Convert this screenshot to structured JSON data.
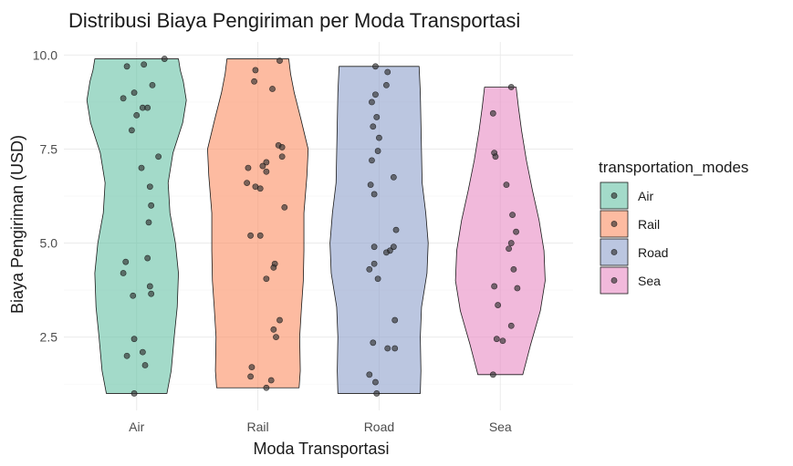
{
  "chart_data": {
    "type": "violin",
    "title": "Distribusi Biaya Pengiriman per Moda Transportasi",
    "xlabel": "Moda Transportasi",
    "ylabel": "Biaya Pengiriman (USD)",
    "categories": [
      "Air",
      "Rail",
      "Road",
      "Sea"
    ],
    "ylim": [
      0.55,
      10.35
    ],
    "yticks": [
      2.5,
      5.0,
      7.5,
      10.0
    ],
    "ytick_labels": [
      "2.5",
      "5.0",
      "7.5",
      "10.0"
    ],
    "grid": true,
    "legend": {
      "title": "transportation_modes",
      "position": "right",
      "items": [
        "Air",
        "Rail",
        "Road",
        "Sea"
      ]
    },
    "colors": {
      "Air": "#66c2a5",
      "Rail": "#fc8d62",
      "Road": "#8da0cb",
      "Sea": "#e78ac3"
    },
    "point_color": "#333333",
    "series": [
      {
        "name": "Air",
        "violin_width": [
          [
            1.0,
            0.5
          ],
          [
            1.6,
            0.57
          ],
          [
            2.5,
            0.62
          ],
          [
            3.3,
            0.67
          ],
          [
            4.2,
            0.69
          ],
          [
            5.0,
            0.64
          ],
          [
            5.8,
            0.55
          ],
          [
            6.6,
            0.52
          ],
          [
            7.4,
            0.6
          ],
          [
            8.2,
            0.76
          ],
          [
            8.8,
            0.82
          ],
          [
            9.3,
            0.77
          ],
          [
            9.6,
            0.72
          ],
          [
            9.9,
            0.69
          ]
        ],
        "points": [
          9.7,
          9.75,
          9.9,
          9.2,
          9.0,
          8.85,
          8.6,
          8.6,
          8.4,
          8.0,
          7.3,
          7.0,
          6.5,
          6.0,
          5.55,
          4.6,
          4.5,
          4.2,
          3.85,
          3.65,
          3.6,
          2.45,
          2.1,
          2.0,
          1.75,
          1.0
        ],
        "jitter": [
          0.92,
          1.06,
          1.23,
          1.13,
          0.98,
          0.89,
          1.05,
          1.09,
          1.0,
          0.96,
          1.18,
          1.04,
          1.11,
          1.12,
          1.1,
          1.09,
          0.91,
          0.89,
          1.11,
          1.12,
          0.97,
          0.98,
          1.05,
          0.92,
          1.07,
          0.98
        ]
      },
      {
        "name": "Rail",
        "violin_width": [
          [
            1.15,
            0.68
          ],
          [
            1.6,
            0.7
          ],
          [
            2.5,
            0.69
          ],
          [
            3.3,
            0.72
          ],
          [
            4.0,
            0.75
          ],
          [
            4.8,
            0.76
          ],
          [
            5.8,
            0.76
          ],
          [
            6.8,
            0.81
          ],
          [
            7.5,
            0.83
          ],
          [
            8.3,
            0.71
          ],
          [
            9.0,
            0.6
          ],
          [
            9.5,
            0.54
          ],
          [
            9.9,
            0.51
          ]
        ],
        "points": [
          9.85,
          9.6,
          9.3,
          9.1,
          7.6,
          7.55,
          7.3,
          7.15,
          7.05,
          7.0,
          6.9,
          6.6,
          6.5,
          6.45,
          5.95,
          5.2,
          5.2,
          4.45,
          4.35,
          4.05,
          2.95,
          2.7,
          2.5,
          1.7,
          1.45,
          1.35,
          1.15
        ],
        "jitter": [
          2.18,
          1.98,
          1.97,
          2.12,
          2.17,
          2.2,
          2.2,
          2.07,
          2.04,
          1.92,
          2.07,
          1.91,
          1.98,
          2.02,
          2.22,
          1.94,
          2.02,
          2.14,
          2.13,
          2.07,
          2.18,
          2.13,
          2.15,
          1.95,
          1.94,
          2.11,
          2.07
        ]
      },
      {
        "name": "Road",
        "violin_width": [
          [
            1.0,
            0.68
          ],
          [
            1.6,
            0.69
          ],
          [
            2.5,
            0.68
          ],
          [
            3.3,
            0.7
          ],
          [
            4.2,
            0.79
          ],
          [
            5.0,
            0.81
          ],
          [
            5.8,
            0.77
          ],
          [
            6.6,
            0.71
          ],
          [
            7.4,
            0.7
          ],
          [
            8.2,
            0.69
          ],
          [
            9.0,
            0.68
          ],
          [
            9.7,
            0.66
          ]
        ],
        "points": [
          9.7,
          9.55,
          9.2,
          8.95,
          8.75,
          8.35,
          8.1,
          7.8,
          7.45,
          7.2,
          6.75,
          6.55,
          6.3,
          5.35,
          4.9,
          4.9,
          4.8,
          4.75,
          4.45,
          4.3,
          4.05,
          2.95,
          2.35,
          2.2,
          2.2,
          1.5,
          1.3,
          1.0
        ],
        "jitter": [
          2.97,
          3.07,
          3.06,
          2.97,
          2.94,
          2.98,
          2.95,
          3.0,
          2.99,
          2.94,
          3.12,
          2.93,
          2.96,
          3.14,
          2.96,
          3.12,
          3.09,
          3.06,
          2.96,
          2.92,
          2.99,
          3.13,
          2.95,
          3.07,
          3.13,
          2.92,
          2.97,
          2.98
        ]
      },
      {
        "name": "Sea",
        "violin_width": [
          [
            1.5,
            0.37
          ],
          [
            2.3,
            0.5
          ],
          [
            3.2,
            0.66
          ],
          [
            4.0,
            0.74
          ],
          [
            4.8,
            0.72
          ],
          [
            5.6,
            0.64
          ],
          [
            6.4,
            0.53
          ],
          [
            7.2,
            0.43
          ],
          [
            8.0,
            0.35
          ],
          [
            8.6,
            0.3
          ],
          [
            9.15,
            0.26
          ]
        ],
        "points": [
          9.15,
          8.45,
          7.4,
          7.3,
          6.55,
          5.75,
          5.3,
          5.0,
          4.85,
          4.3,
          3.85,
          3.8,
          3.35,
          2.8,
          2.45,
          2.4,
          1.5
        ],
        "jitter": [
          4.09,
          3.94,
          3.95,
          3.96,
          4.05,
          4.1,
          4.13,
          4.09,
          4.07,
          4.11,
          3.95,
          4.14,
          3.98,
          4.09,
          3.97,
          4.02,
          3.94
        ]
      }
    ]
  }
}
